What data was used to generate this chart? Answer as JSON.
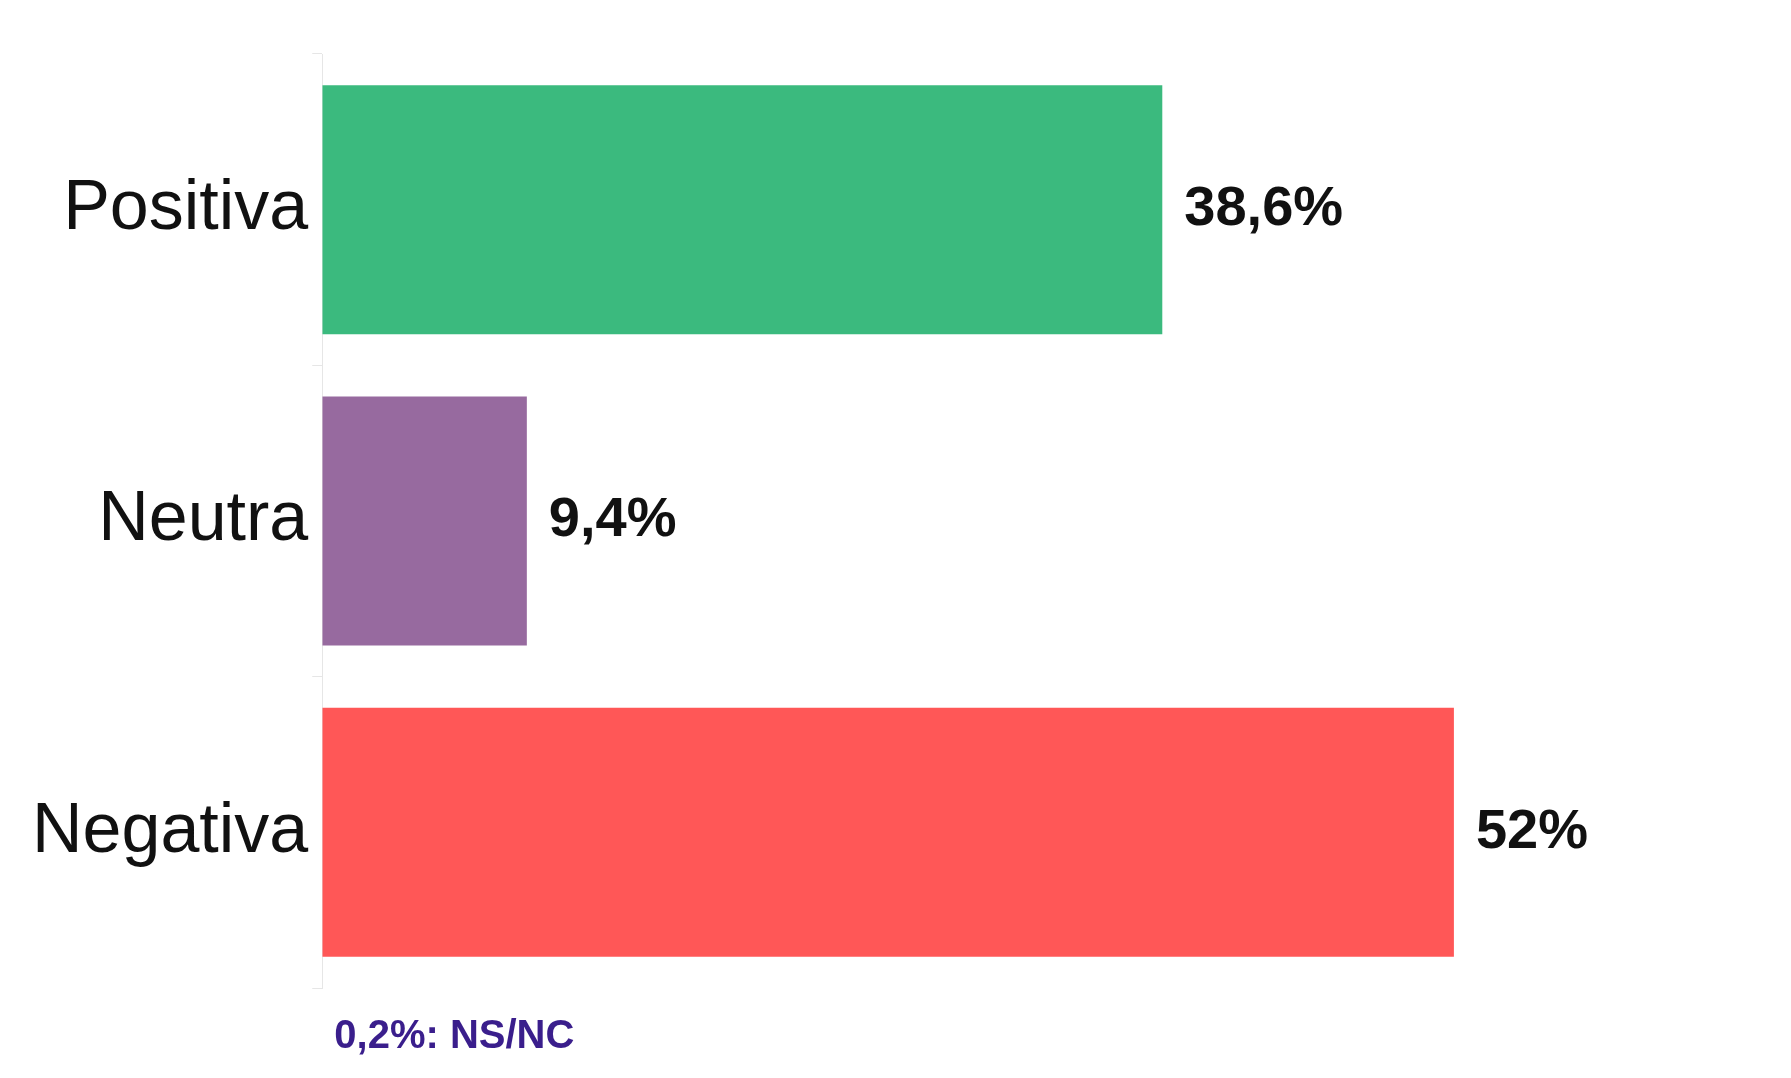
{
  "chart_data": {
    "type": "bar",
    "orientation": "horizontal",
    "categories": [
      "Positiva",
      "Neutra",
      "Negativa"
    ],
    "values": [
      38.6,
      9.4,
      52
    ],
    "colors": [
      "#3bba7e",
      "#976a9f",
      "#ff5757"
    ],
    "value_labels": [
      "38,6%",
      "9,4%",
      "52%"
    ],
    "annotations": [
      "0,2%: NS/NC"
    ],
    "grid": false,
    "legend": false,
    "tick_labels": "y"
  }
}
